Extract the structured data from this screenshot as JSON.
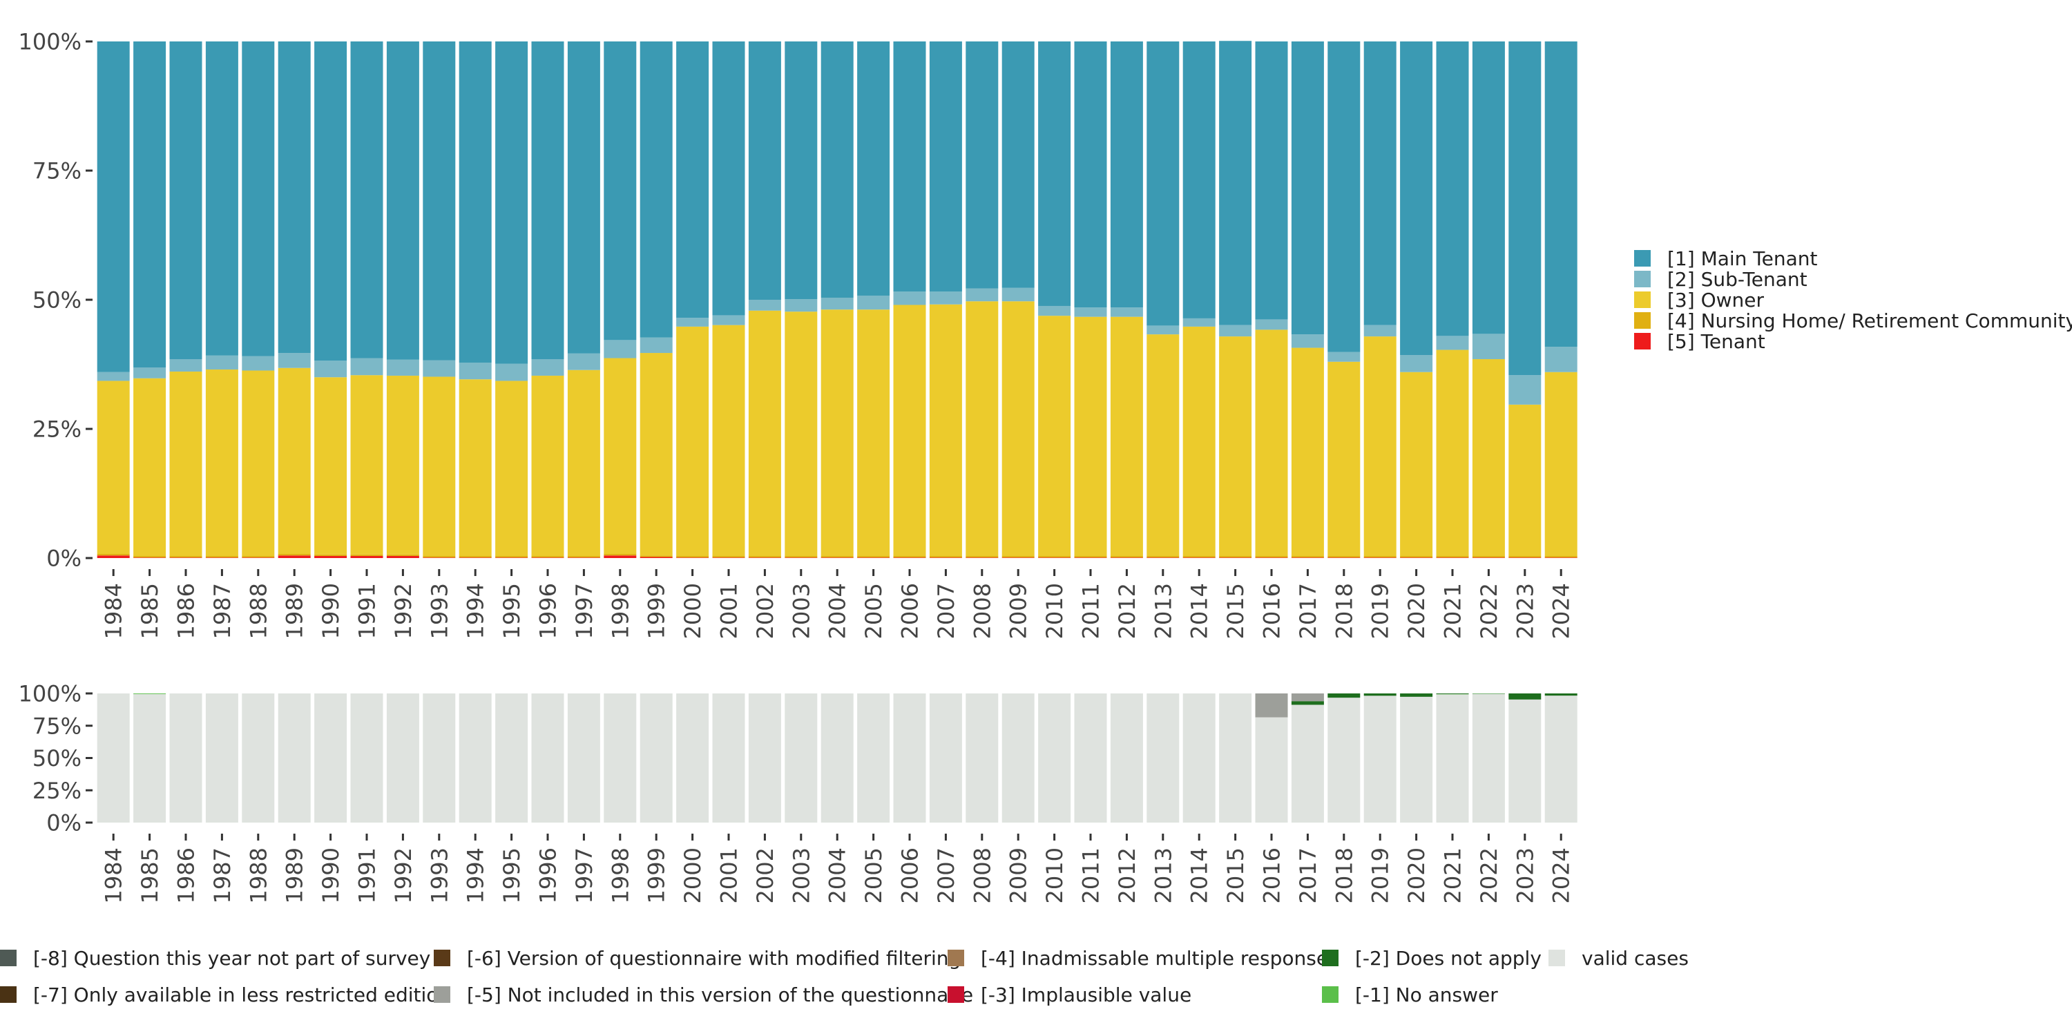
{
  "chart_data": [
    {
      "id": "main",
      "type": "bar",
      "stacked": true,
      "normalized": true,
      "title": "",
      "xlabel": "",
      "ylabel": "",
      "ylim": [
        0,
        100
      ],
      "y_ticks": [
        "0%",
        "25%",
        "50%",
        "75%",
        "100%"
      ],
      "legend_position": "right",
      "categories": [
        "1984",
        "1985",
        "1986",
        "1987",
        "1988",
        "1989",
        "1990",
        "1991",
        "1992",
        "1993",
        "1994",
        "1995",
        "1996",
        "1997",
        "1998",
        "1999",
        "2000",
        "2001",
        "2002",
        "2003",
        "2004",
        "2005",
        "2006",
        "2007",
        "2008",
        "2009",
        "2010",
        "2011",
        "2012",
        "2013",
        "2014",
        "2015",
        "2016",
        "2017",
        "2018",
        "2019",
        "2020",
        "2021",
        "2022",
        "2023",
        "2024"
      ],
      "series": [
        {
          "name": "[5] Tenant",
          "color": "#ee1c1c",
          "values": [
            0.5,
            0.1,
            0.1,
            0.1,
            0.1,
            0.5,
            0.4,
            0.4,
            0.4,
            0.1,
            0.1,
            0.1,
            0.1,
            0.1,
            0.5,
            0.2,
            0.1,
            0.1,
            0.1,
            0.1,
            0.1,
            0.1,
            0.1,
            0.1,
            0.1,
            0.1,
            0.1,
            0.1,
            0.1,
            0.1,
            0.1,
            0.1,
            0.1,
            0.1,
            0.1,
            0.1,
            0.1,
            0.1,
            0.1,
            0.1,
            0.1
          ]
        },
        {
          "name": "[4] Nursing Home/ Retirement Community",
          "color": "#e0b012",
          "values": [
            0.3,
            0.3,
            0.3,
            0.3,
            0.3,
            0.3,
            0.3,
            0.3,
            0.3,
            0.3,
            0.3,
            0.3,
            0.3,
            0.3,
            0.3,
            0.3,
            0.3,
            0.3,
            0.3,
            0.3,
            0.3,
            0.3,
            0.3,
            0.3,
            0.3,
            0.3,
            0.3,
            0.3,
            0.3,
            0.3,
            0.3,
            0.3,
            0.3,
            0.3,
            0.3,
            0.3,
            0.3,
            0.3,
            0.3,
            0.3,
            0.3
          ]
        },
        {
          "name": "[3] Owner",
          "color": "#eccb2c",
          "values": [
            33.5,
            34.4,
            35.7,
            36.1,
            35.9,
            36.0,
            34.3,
            34.7,
            34.6,
            34.7,
            34.2,
            33.9,
            34.9,
            36.0,
            37.9,
            39.2,
            44.4,
            44.7,
            47.5,
            47.3,
            47.7,
            47.7,
            48.6,
            48.7,
            49.3,
            49.3,
            46.5,
            46.3,
            46.3,
            42.9,
            44.4,
            42.5,
            43.8,
            40.3,
            37.6,
            42.5,
            35.6,
            39.9,
            38.1,
            29.3,
            35.6
          ]
        },
        {
          "name": "[2] Sub-Tenant",
          "color": "#7cb8c7",
          "values": [
            1.7,
            2.1,
            2.4,
            2.7,
            2.8,
            2.9,
            3.2,
            3.3,
            3.1,
            3.2,
            3.2,
            3.3,
            3.2,
            3.2,
            3.5,
            3.0,
            1.7,
            1.9,
            2.1,
            2.4,
            2.3,
            2.7,
            2.6,
            2.5,
            2.5,
            2.6,
            1.9,
            1.8,
            1.8,
            1.7,
            1.6,
            2.2,
            2.0,
            2.6,
            1.9,
            2.2,
            3.3,
            2.7,
            4.9,
            5.7,
            4.9
          ]
        },
        {
          "name": "[1] Main Tenant",
          "color": "#3b9ab3",
          "values": [
            64.0,
            63.1,
            61.5,
            60.8,
            60.9,
            60.3,
            61.8,
            61.3,
            61.6,
            61.7,
            62.2,
            62.4,
            61.5,
            60.4,
            57.8,
            57.3,
            53.5,
            53.0,
            50.0,
            49.9,
            49.6,
            49.2,
            48.4,
            48.4,
            47.8,
            47.7,
            51.2,
            51.5,
            51.5,
            55.0,
            53.6,
            55.0,
            53.8,
            56.7,
            60.1,
            54.9,
            60.7,
            57.0,
            56.6,
            64.6,
            59.1
          ]
        }
      ],
      "legend_order": [
        "[1] Main Tenant",
        "[2] Sub-Tenant",
        "[3] Owner",
        "[4] Nursing Home/ Retirement Community",
        "[5] Tenant"
      ]
    },
    {
      "id": "missing",
      "type": "bar",
      "stacked": true,
      "normalized": true,
      "title": "",
      "xlabel": "",
      "ylabel": "",
      "ylim": [
        0,
        100
      ],
      "y_ticks": [
        "0%",
        "25%",
        "50%",
        "75%",
        "100%"
      ],
      "legend_position": "bottom",
      "categories": [
        "1984",
        "1985",
        "1986",
        "1987",
        "1988",
        "1989",
        "1990",
        "1991",
        "1992",
        "1993",
        "1994",
        "1995",
        "1996",
        "1997",
        "1998",
        "1999",
        "2000",
        "2001",
        "2002",
        "2003",
        "2004",
        "2005",
        "2006",
        "2007",
        "2008",
        "2009",
        "2010",
        "2011",
        "2012",
        "2013",
        "2014",
        "2015",
        "2016",
        "2017",
        "2018",
        "2019",
        "2020",
        "2021",
        "2022",
        "2023",
        "2024"
      ],
      "series": [
        {
          "name": "valid cases",
          "color": "#dfe3df",
          "values": [
            100,
            99.5,
            100,
            100,
            100,
            100,
            100,
            100,
            100,
            100,
            100,
            100,
            100,
            100,
            100,
            100,
            100,
            100,
            100,
            100,
            100,
            100,
            100,
            100,
            100,
            100,
            100,
            100,
            100,
            100,
            100,
            100,
            81.5,
            91.2,
            96.7,
            98.2,
            97.4,
            99.3,
            99.6,
            95.3,
            98.3
          ]
        },
        {
          "name": "[-1] No answer",
          "color": "#5bbf4a",
          "values": [
            0,
            0.5,
            0,
            0,
            0,
            0,
            0,
            0,
            0,
            0,
            0,
            0,
            0,
            0,
            0,
            0,
            0,
            0,
            0,
            0,
            0,
            0,
            0,
            0,
            0,
            0,
            0,
            0,
            0,
            0,
            0,
            0,
            0,
            0,
            0,
            0,
            0,
            0.2,
            0.2,
            0,
            0
          ]
        },
        {
          "name": "[-2] Does not apply",
          "color": "#1e6e1e",
          "values": [
            0,
            0,
            0,
            0,
            0,
            0,
            0,
            0,
            0,
            0,
            0,
            0,
            0,
            0,
            0,
            0,
            0,
            0,
            0,
            0,
            0,
            0,
            0,
            0,
            0,
            0,
            0,
            0,
            0,
            0,
            0,
            0,
            0,
            2.8,
            3.3,
            1.8,
            2.6,
            0.5,
            0.2,
            4.7,
            1.7
          ]
        },
        {
          "name": "[-3] Implausible value",
          "color": "#c8102e",
          "values": [
            0,
            0,
            0,
            0,
            0,
            0,
            0,
            0,
            0,
            0,
            0,
            0,
            0,
            0,
            0,
            0,
            0,
            0,
            0,
            0,
            0,
            0,
            0,
            0,
            0,
            0,
            0,
            0,
            0,
            0,
            0,
            0,
            0,
            0,
            0,
            0,
            0,
            0,
            0,
            0,
            0
          ]
        },
        {
          "name": "[-4] Inadmissable multiple response",
          "color": "#a07850",
          "values": [
            0,
            0,
            0,
            0,
            0,
            0,
            0,
            0,
            0,
            0,
            0,
            0,
            0,
            0,
            0,
            0,
            0,
            0,
            0,
            0,
            0,
            0,
            0,
            0,
            0,
            0,
            0,
            0,
            0,
            0,
            0,
            0,
            0,
            0,
            0,
            0,
            0,
            0,
            0,
            0,
            0
          ]
        },
        {
          "name": "[-5] Not included in this version of the questionnaire",
          "color": "#9d9f9a",
          "values": [
            0,
            0,
            0,
            0,
            0,
            0,
            0,
            0,
            0,
            0,
            0,
            0,
            0,
            0,
            0,
            0,
            0,
            0,
            0,
            0,
            0,
            0,
            0,
            0,
            0,
            0,
            0,
            0,
            0,
            0,
            0,
            0,
            18.5,
            6.0,
            0,
            0,
            0,
            0,
            0,
            0,
            0
          ]
        },
        {
          "name": "[-6] Version of questionnaire with modified filtering",
          "color": "#5a3a18",
          "values": [
            0,
            0,
            0,
            0,
            0,
            0,
            0,
            0,
            0,
            0,
            0,
            0,
            0,
            0,
            0,
            0,
            0,
            0,
            0,
            0,
            0,
            0,
            0,
            0,
            0,
            0,
            0,
            0,
            0,
            0,
            0,
            0,
            0,
            0,
            0,
            0,
            0,
            0,
            0,
            0,
            0
          ]
        },
        {
          "name": "[-7] Only available in less restricted edition",
          "color": "#4a3214",
          "values": [
            0,
            0,
            0,
            0,
            0,
            0,
            0,
            0,
            0,
            0,
            0,
            0,
            0,
            0,
            0,
            0,
            0,
            0,
            0,
            0,
            0,
            0,
            0,
            0,
            0,
            0,
            0,
            0,
            0,
            0,
            0,
            0,
            0,
            0,
            0,
            0,
            0,
            0,
            0,
            0,
            0
          ]
        },
        {
          "name": "[-8] Question this year not part of survey",
          "color": "#4f5a55",
          "values": [
            0,
            0,
            0,
            0,
            0,
            0,
            0,
            0,
            0,
            0,
            0,
            0,
            0,
            0,
            0,
            0,
            0,
            0,
            0,
            0,
            0,
            0,
            0,
            0,
            0,
            0,
            0,
            0,
            0,
            0,
            0,
            0,
            0,
            0,
            0,
            0,
            0,
            0,
            0,
            0,
            0
          ]
        }
      ],
      "legend_rows": [
        [
          "[-8] Question this year not part of survey",
          "[-6] Version of questionnaire with modified filtering",
          "[-4] Inadmissable multiple response",
          "[-2] Does not apply",
          "valid cases"
        ],
        [
          "[-7] Only available in less restricted edition",
          "[-5] Not included in this version of the questionnaire",
          "[-3] Implausible value",
          "[-1] No answer"
        ]
      ]
    }
  ]
}
